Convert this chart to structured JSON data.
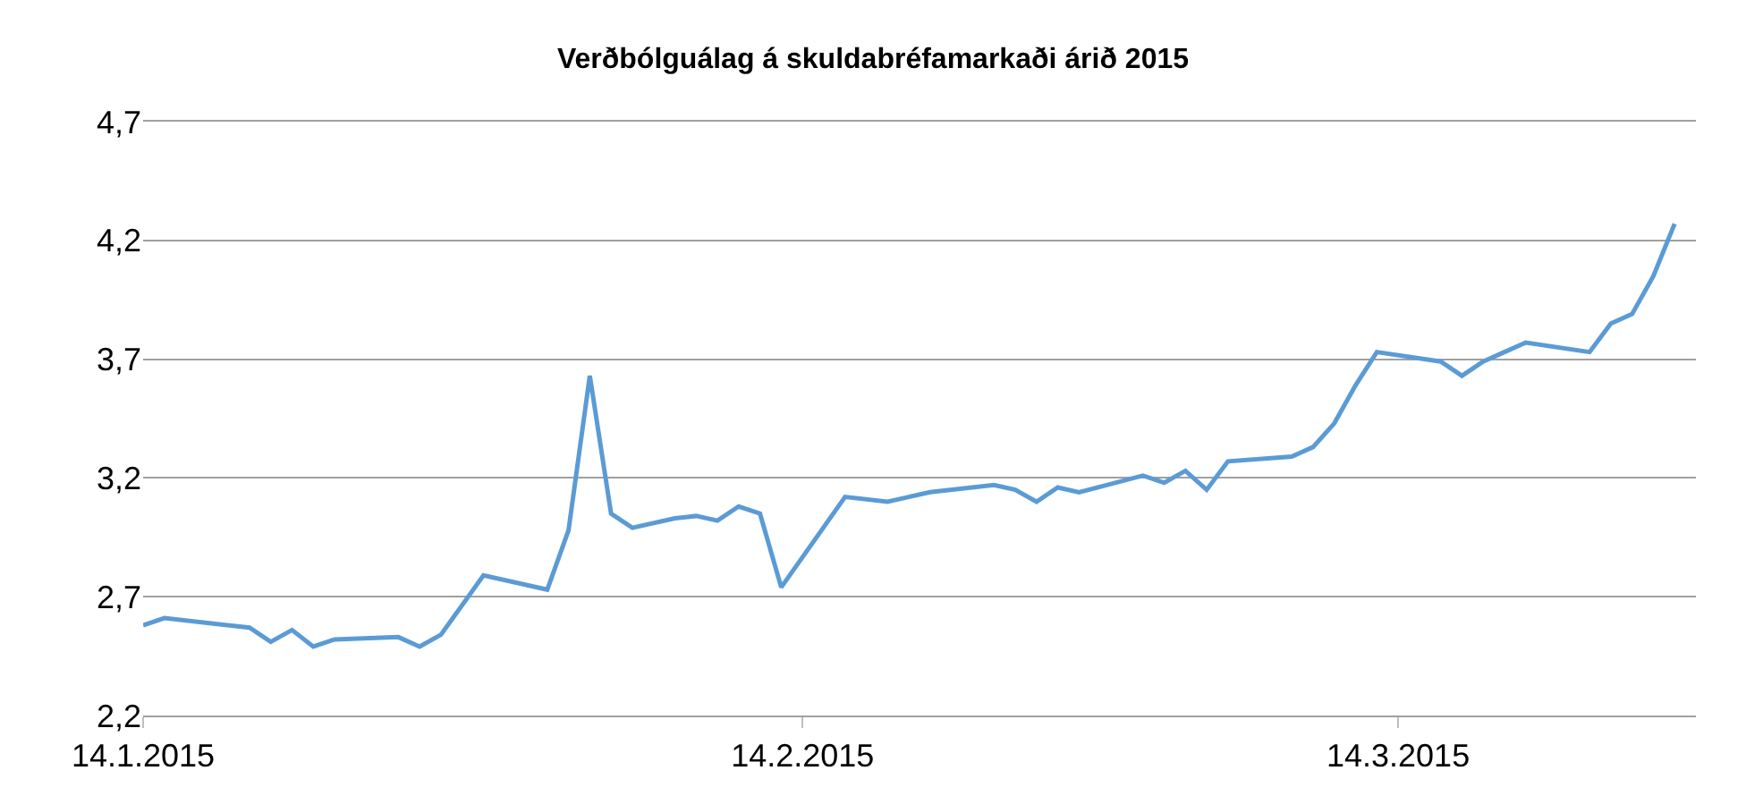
{
  "chart_data": {
    "type": "line",
    "title": "Verðbólguálag á skuldabréfamarkaði árið 2015",
    "x": [
      "2015-01-14",
      "2015-01-15",
      "2015-01-19",
      "2015-01-20",
      "2015-01-21",
      "2015-01-22",
      "2015-01-23",
      "2015-01-26",
      "2015-01-27",
      "2015-01-28",
      "2015-01-30",
      "2015-02-02",
      "2015-02-03",
      "2015-02-04",
      "2015-02-05",
      "2015-02-06",
      "2015-02-08",
      "2015-02-09",
      "2015-02-10",
      "2015-02-11",
      "2015-02-12",
      "2015-02-13",
      "2015-02-16",
      "2015-02-18",
      "2015-02-19",
      "2015-02-20",
      "2015-02-23",
      "2015-02-24",
      "2015-02-25",
      "2015-02-26",
      "2015-02-27",
      "2015-03-02",
      "2015-03-03",
      "2015-03-04",
      "2015-03-05",
      "2015-03-06",
      "2015-03-09",
      "2015-03-10",
      "2015-03-11",
      "2015-03-12",
      "2015-03-13",
      "2015-03-16",
      "2015-03-17",
      "2015-03-18",
      "2015-03-19",
      "2015-03-20",
      "2015-03-23",
      "2015-03-24",
      "2015-03-25",
      "2015-03-26",
      "2015-03-27"
    ],
    "series": [
      {
        "color": "#5b9bd5",
        "values": [
          2.58,
          2.61,
          2.57,
          2.51,
          2.56,
          2.49,
          2.52,
          2.53,
          2.49,
          2.54,
          2.79,
          2.73,
          2.98,
          3.63,
          3.05,
          2.99,
          3.03,
          3.04,
          3.02,
          3.08,
          3.05,
          2.74,
          3.12,
          3.1,
          3.12,
          3.14,
          3.17,
          3.15,
          3.1,
          3.16,
          3.14,
          3.21,
          3.18,
          3.23,
          3.15,
          3.27,
          3.29,
          3.33,
          3.43,
          3.59,
          3.73,
          3.69,
          3.63,
          3.69,
          3.73,
          3.77,
          3.73,
          3.85,
          3.89,
          4.05,
          4.27
        ]
      }
    ],
    "xlim": [
      "2015-01-14",
      "2015-03-28"
    ],
    "xticks": [
      {
        "value": "2015-01-14",
        "label": "14.1.2015"
      },
      {
        "value": "2015-02-14",
        "label": "14.2.2015"
      },
      {
        "value": "2015-03-14",
        "label": "14.3.2015"
      }
    ],
    "ylim": [
      2.2,
      4.7
    ],
    "yticks": [
      {
        "value": 2.2,
        "label": "2,2"
      },
      {
        "value": 2.7,
        "label": "2,7"
      },
      {
        "value": 3.2,
        "label": "3,2"
      },
      {
        "value": 3.7,
        "label": "3,7"
      },
      {
        "value": 4.2,
        "label": "4,2"
      },
      {
        "value": 4.7,
        "label": "4,7"
      }
    ],
    "grid": "y",
    "marker": "none",
    "line_style": "solid"
  }
}
